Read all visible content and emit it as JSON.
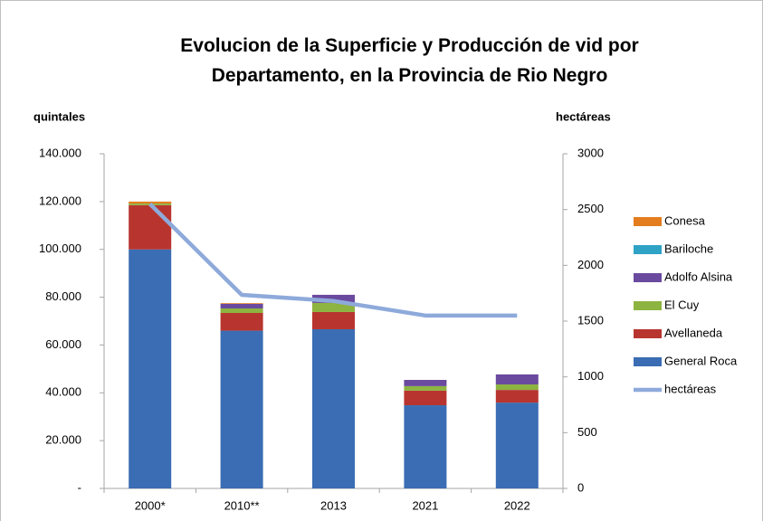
{
  "chart_data": {
    "type": "bar",
    "stacked": true,
    "title": "Evolucion de la Superficie y Producción de vid por Departamento, en la Provincia de Rio Negro",
    "y_label": "quintales",
    "y2_label": "hectáreas",
    "categories": [
      "2000*",
      "2010**",
      "2013",
      "2021",
      "2022"
    ],
    "series": [
      {
        "name": "General Roca",
        "color": "#3a6db3",
        "values": [
          100000,
          66000,
          66600,
          34800,
          35900
        ]
      },
      {
        "name": "Avellaneda",
        "color": "#b8352f",
        "values": [
          18500,
          7400,
          7200,
          6100,
          5300
        ]
      },
      {
        "name": "El Cuy",
        "color": "#8db340",
        "values": [
          700,
          1900,
          3800,
          1900,
          2300
        ]
      },
      {
        "name": "Adolfo Alsina",
        "color": "#6a4a9e",
        "values": [
          0,
          1900,
          3400,
          2600,
          4200
        ]
      },
      {
        "name": "Bariloche",
        "color": "#2ea3c6",
        "values": [
          0,
          0,
          0,
          0,
          0
        ]
      },
      {
        "name": "Conesa",
        "color": "#e47d1e",
        "values": [
          800,
          300,
          0,
          0,
          0
        ]
      },
      {
        "name": "hectáreas",
        "color": "#8eaadb",
        "type": "line",
        "axis": "y2",
        "values": [
          2550,
          1735,
          1680,
          1550,
          1550
        ]
      }
    ],
    "ylim": [
      0,
      140000
    ],
    "yticks": [
      {
        "value": 0,
        "label": "-"
      },
      {
        "value": 20000,
        "label": "20.000"
      },
      {
        "value": 40000,
        "label": "40.000"
      },
      {
        "value": 60000,
        "label": "60.000"
      },
      {
        "value": 80000,
        "label": "80.000"
      },
      {
        "value": 100000,
        "label": "100.000"
      },
      {
        "value": 120000,
        "label": "120.000"
      },
      {
        "value": 140000,
        "label": "140.000"
      }
    ],
    "y2lim": [
      0,
      3000
    ],
    "y2ticks": [
      0,
      500,
      1000,
      1500,
      2000,
      2500,
      3000
    ],
    "grid": false,
    "legend": "right"
  }
}
